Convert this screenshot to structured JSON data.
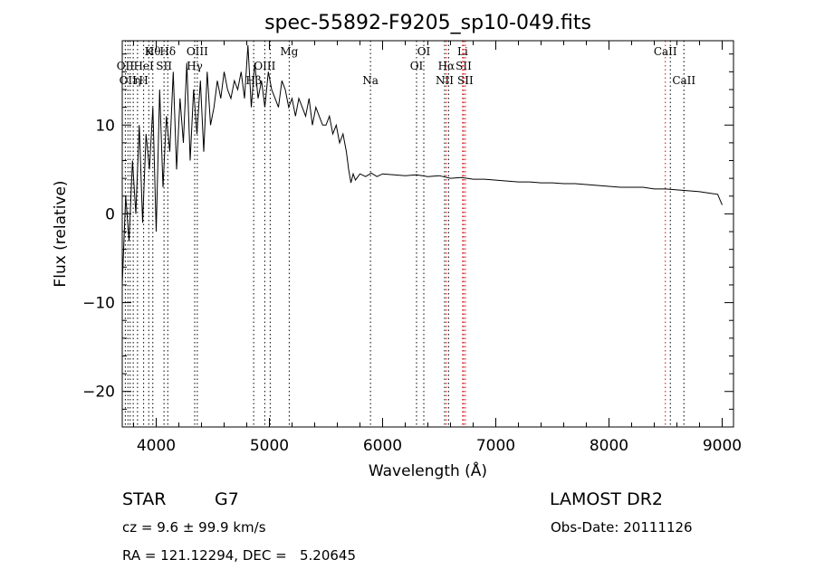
{
  "chart_data": {
    "type": "line",
    "title": "spec-55892-F9205_sp10-049.fits",
    "xlabel": "Wavelength (Å)",
    "ylabel": "Flux (relative)",
    "xlim": [
      3700,
      9100
    ],
    "ylim": [
      -24,
      19.5
    ],
    "xticks": [
      4000,
      5000,
      6000,
      7000,
      8000,
      9000
    ],
    "yticks": [
      -20,
      -10,
      0,
      10
    ],
    "grid": false,
    "legend": "none",
    "series": [
      {
        "x": [
          3700,
          3730,
          3760,
          3790,
          3820,
          3850,
          3880,
          3910,
          3940,
          3970,
          4000,
          4030,
          4060,
          4090,
          4120,
          4150,
          4180,
          4210,
          4240,
          4270,
          4300,
          4330,
          4360,
          4390,
          4420,
          4450,
          4480,
          4510,
          4540,
          4570,
          4600,
          4630,
          4660,
          4690,
          4720,
          4750,
          4780,
          4810,
          4840,
          4870,
          4900,
          4930,
          4960,
          4990,
          5020,
          5050,
          5080,
          5110,
          5140,
          5170,
          5200,
          5230,
          5260,
          5290,
          5320,
          5350,
          5380,
          5410,
          5440,
          5470,
          5500,
          5530,
          5560,
          5590,
          5620,
          5650,
          5680,
          5700,
          5720,
          5740,
          5760,
          5800,
          5850,
          5900,
          5950,
          6000,
          6100,
          6200,
          6300,
          6400,
          6500,
          6600,
          6700,
          6800,
          6900,
          7000,
          7100,
          7200,
          7300,
          7400,
          7500,
          7600,
          7700,
          7800,
          7900,
          8000,
          8100,
          8200,
          8300,
          8400,
          8500,
          8600,
          8700,
          8800,
          8900,
          8960,
          9000
        ],
        "y": [
          -8,
          2,
          -3,
          6,
          0,
          10,
          -1,
          9,
          5,
          12,
          -2,
          14,
          3,
          11,
          7,
          16,
          5,
          13,
          8,
          17,
          6,
          14,
          9,
          15,
          7,
          16,
          10,
          12,
          15,
          13,
          16,
          14,
          13,
          15,
          14,
          16,
          13,
          19,
          12,
          17,
          13,
          15,
          12,
          16,
          14,
          13,
          12,
          15,
          14,
          12,
          13,
          11,
          13,
          12,
          11,
          13,
          10,
          12,
          11,
          10,
          10,
          11,
          9,
          10,
          8,
          9,
          7,
          5,
          3.5,
          4.5,
          3.8,
          4.5,
          4.2,
          4.6,
          4.2,
          4.5,
          4.4,
          4.3,
          4.4,
          4.2,
          4.3,
          4.0,
          4.1,
          3.9,
          3.9,
          3.8,
          3.7,
          3.6,
          3.6,
          3.5,
          3.5,
          3.4,
          3.4,
          3.3,
          3.2,
          3.1,
          3.0,
          3.0,
          3.0,
          2.8,
          2.8,
          2.7,
          2.6,
          2.5,
          2.3,
          2.2,
          1.0
        ],
        "color": "#000000"
      }
    ],
    "line_markers": [
      {
        "x": 3727,
        "color": "#000000",
        "labels": [
          {
            "text": "OII",
            "row": 2
          }
        ]
      },
      {
        "x": 3750,
        "color": "#000000",
        "labels": [
          {
            "text": "OII",
            "row": 3
          }
        ]
      },
      {
        "x": 3770,
        "color": "#000000",
        "labels": []
      },
      {
        "x": 3797,
        "color": "#000000",
        "labels": []
      },
      {
        "x": 3835,
        "color": "#000000",
        "labels": [
          {
            "text": "η",
            "row": 3
          }
        ]
      },
      {
        "x": 3889,
        "color": "#000000",
        "labels": [
          {
            "text": "HeI",
            "row": 2
          },
          {
            "text": "H",
            "row": 3
          }
        ]
      },
      {
        "x": 3934,
        "color": "#000000",
        "labels": [
          {
            "text": "K",
            "row": 1
          }
        ]
      },
      {
        "x": 3970,
        "color": "#000000",
        "labels": [
          {
            "text": "Hθ",
            "row": 1
          }
        ]
      },
      {
        "x": 4069,
        "color": "#000000",
        "labels": [
          {
            "text": "SII",
            "row": 2
          }
        ]
      },
      {
        "x": 4102,
        "color": "#000000",
        "labels": [
          {
            "text": "Hδ",
            "row": 1
          }
        ]
      },
      {
        "x": 4340,
        "color": "#000000",
        "labels": [
          {
            "text": "Hγ",
            "row": 2
          }
        ]
      },
      {
        "x": 4363,
        "color": "#000000",
        "labels": [
          {
            "text": "OIII",
            "row": 1
          }
        ]
      },
      {
        "x": 4861,
        "color": "#000000",
        "labels": [
          {
            "text": "Hβ",
            "row": 3
          }
        ]
      },
      {
        "x": 4959,
        "color": "#000000",
        "labels": [
          {
            "text": "OIII",
            "row": 2
          }
        ]
      },
      {
        "x": 5007,
        "color": "#000000",
        "labels": []
      },
      {
        "x": 5175,
        "color": "#000000",
        "labels": [
          {
            "text": "Mg",
            "row": 1
          }
        ]
      },
      {
        "x": 5893,
        "color": "#000000",
        "labels": [
          {
            "text": "Na",
            "row": 3
          }
        ]
      },
      {
        "x": 6300,
        "color": "#000000",
        "labels": [
          {
            "text": "OI",
            "row": 2
          }
        ]
      },
      {
        "x": 6364,
        "color": "#000000",
        "labels": [
          {
            "text": "OI",
            "row": 1
          }
        ]
      },
      {
        "x": 6548,
        "color": "#000000",
        "labels": [
          {
            "text": "NII",
            "row": 3
          }
        ]
      },
      {
        "x": 6563,
        "color": "#e00000",
        "labels": [
          {
            "text": "Hα",
            "row": 2
          }
        ]
      },
      {
        "x": 6583,
        "color": "#000000",
        "labels": []
      },
      {
        "x": 6707,
        "color": "#e00000",
        "labels": [
          {
            "text": "Li",
            "row": 1
          }
        ]
      },
      {
        "x": 6716,
        "color": "#e00000",
        "labels": [
          {
            "text": "SII",
            "row": 2
          }
        ]
      },
      {
        "x": 6731,
        "color": "#e00000",
        "labels": [
          {
            "text": "SII",
            "row": 3
          }
        ]
      },
      {
        "x": 8498,
        "color": "#e00000",
        "labels": [
          {
            "text": "CaII",
            "row": 1
          }
        ]
      },
      {
        "x": 8542,
        "color": "#000000",
        "labels": []
      },
      {
        "x": 8662,
        "color": "#000000",
        "labels": [
          {
            "text": "CaII",
            "row": 3
          }
        ]
      }
    ]
  },
  "info": {
    "class_label": "STAR",
    "subclass": "G7",
    "survey": "LAMOST DR2",
    "cz": "cz = 9.6 ± 99.9 km/s",
    "obs_date": "Obs-Date: 20111126",
    "radec": "RA = 121.12294, DEC =   5.20645"
  }
}
